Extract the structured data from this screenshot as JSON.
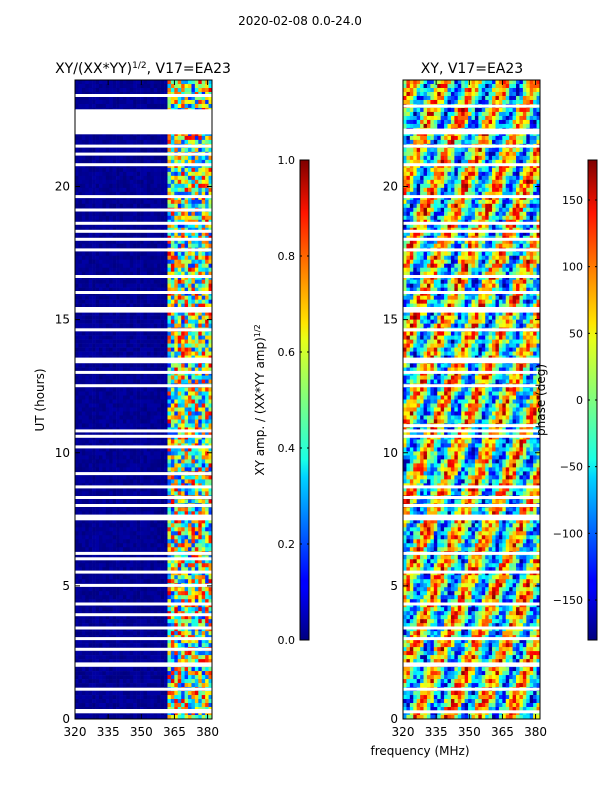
{
  "suptitle": "2020-02-08 0.0-24.0",
  "chart_data": [
    {
      "type": "heatmap",
      "title_html": "XY/(XX*YY)<sup>1/2</sup>, V17=EA23",
      "title_main": "XY/(XX*YY)",
      "title_sup": "1/2",
      "title_tail": ", V17=EA23",
      "xlabel": "",
      "ylabel": "UT (hours)",
      "xlim": [
        320,
        382
      ],
      "ylim": [
        0,
        24
      ],
      "xticks": [
        320,
        335,
        350,
        365,
        380
      ],
      "yticks": [
        0,
        5,
        10,
        15,
        20
      ],
      "colorbar": {
        "label_main": "XY amp. / (XX*YY amp)",
        "label_sup": "1/2",
        "range": [
          0.0,
          1.0
        ],
        "ticks": [
          "0.0",
          "0.2",
          "0.4",
          "0.6",
          "0.8",
          "1.0"
        ],
        "tick_values": [
          0.0,
          0.2,
          0.4,
          0.6,
          0.8,
          1.0
        ]
      },
      "bright_band_start_mhz": 362,
      "flagged_hours": [
        0.25,
        0.3,
        1.1,
        2.0,
        2.05,
        2.6,
        3.0,
        3.4,
        3.9,
        4.3,
        5.0,
        5.5,
        6.0,
        6.2,
        7.5,
        7.6,
        8.0,
        8.3,
        8.7,
        9.2,
        10.2,
        10.6,
        10.8,
        12.5,
        13.0,
        13.4,
        13.5,
        14.6,
        15.3,
        15.4,
        16.0,
        16.6,
        17.6,
        18.0,
        18.3,
        18.6,
        19.1,
        19.6,
        20.8,
        21.2,
        21.5,
        22.0,
        22.1,
        23.4
      ]
    },
    {
      "type": "heatmap",
      "title": "XY, V17=EA23",
      "xlabel": "frequency (MHz)",
      "ylabel": "",
      "xlim": [
        320,
        382
      ],
      "ylim": [
        0,
        24
      ],
      "xticks": [
        320,
        335,
        350,
        365,
        380
      ],
      "yticks": [
        0,
        5,
        10,
        15,
        20
      ],
      "colorbar": {
        "label": "phase (deg)",
        "range": [
          -180,
          180
        ],
        "ticks": [
          "−150",
          "−100",
          "−50",
          "0",
          "50",
          "100",
          "150"
        ],
        "tick_values": [
          -150,
          -100,
          -50,
          0,
          50,
          100,
          150
        ]
      },
      "flagged_hours": [
        0.25,
        1.1,
        2.0,
        2.05,
        3.0,
        3.4,
        4.3,
        5.5,
        6.2,
        7.5,
        7.6,
        8.0,
        8.3,
        8.7,
        10.6,
        10.8,
        11.0,
        12.5,
        13.0,
        13.4,
        13.5,
        14.6,
        15.3,
        15.4,
        16.0,
        16.6,
        17.6,
        18.0,
        18.3,
        18.6,
        19.6,
        20.8,
        21.5,
        22.0,
        22.1,
        23.0
      ]
    }
  ]
}
